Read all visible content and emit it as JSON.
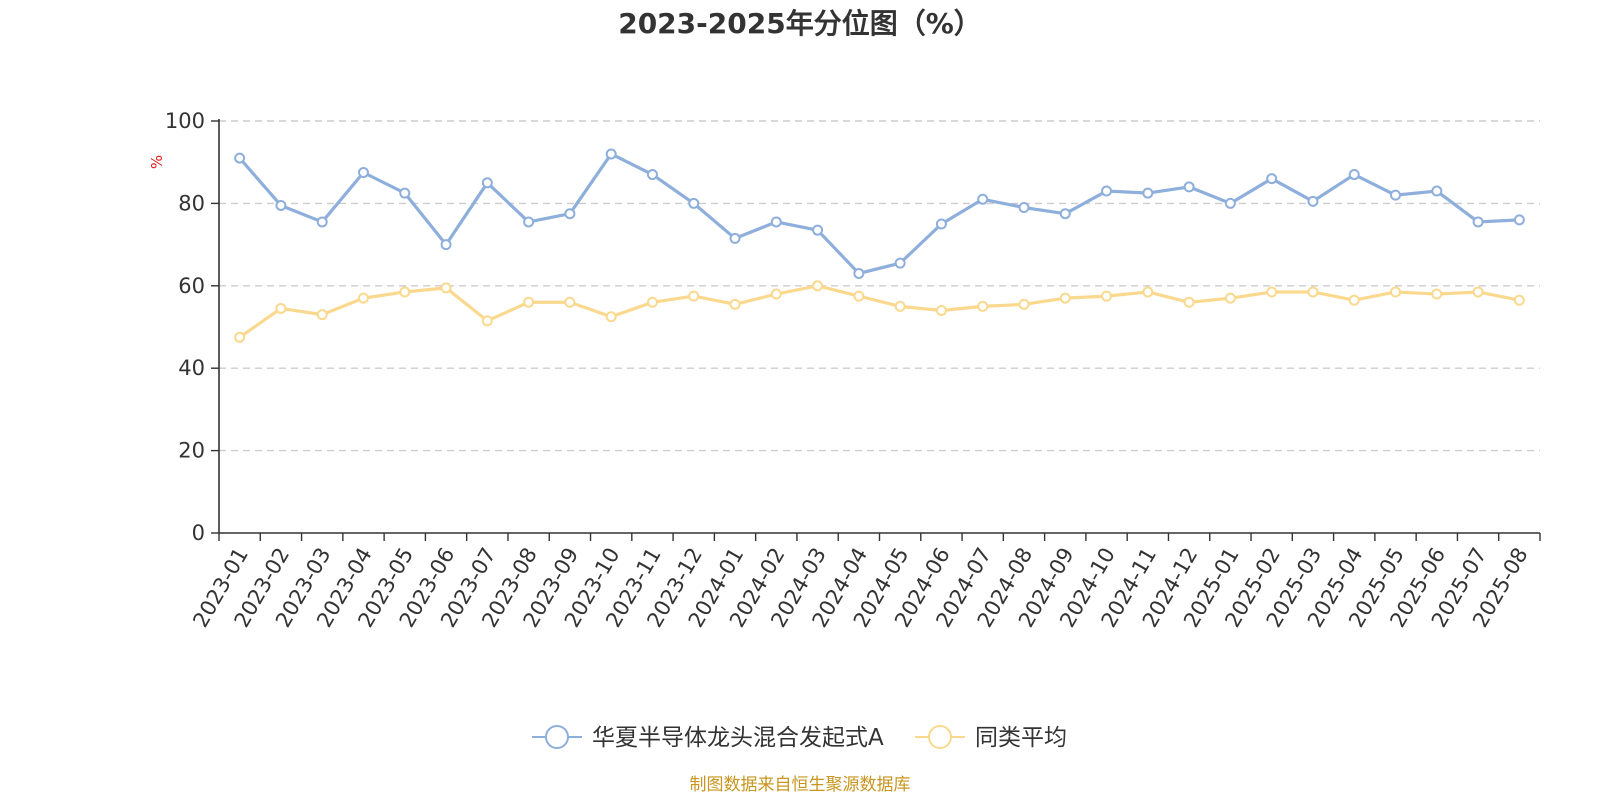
{
  "chart_data": {
    "type": "line",
    "title": "2023-2025年分位图（%）",
    "ylabel": "%",
    "ylim": [
      0,
      100
    ],
    "yticks": [
      0,
      20,
      40,
      60,
      80,
      100
    ],
    "ytick_labels": [
      "0",
      "20",
      "40",
      "60",
      "80",
      "100"
    ],
    "grid": true,
    "legend_position": "bottom-center",
    "categories": [
      "2023-01",
      "2023-02",
      "2023-03",
      "2023-04",
      "2023-05",
      "2023-06",
      "2023-07",
      "2023-08",
      "2023-09",
      "2023-10",
      "2023-11",
      "2023-12",
      "2024-01",
      "2024-02",
      "2024-03",
      "2024-04",
      "2024-05",
      "2024-06",
      "2024-07",
      "2024-08",
      "2024-09",
      "2024-10",
      "2024-11",
      "2024-12",
      "2025-01",
      "2025-02",
      "2025-03",
      "2025-04",
      "2025-05",
      "2025-06",
      "2025-07",
      "2025-08"
    ],
    "series": [
      {
        "name": "华夏半导体龙头混合发起式A",
        "color": "#8eaedc",
        "values": [
          91,
          79.5,
          75.5,
          87.5,
          82.5,
          70,
          85,
          75.5,
          77.5,
          92,
          87,
          80,
          71.5,
          75.5,
          73.5,
          63,
          65.5,
          75,
          81,
          79,
          77.5,
          83,
          82.5,
          84,
          80,
          86,
          80.5,
          87,
          82,
          83,
          75.5,
          76
        ]
      },
      {
        "name": "同类平均",
        "color": "#fad98f",
        "values": [
          47.5,
          54.5,
          53,
          57,
          58.5,
          59.5,
          51.5,
          56,
          56,
          52.5,
          56,
          57.5,
          55.5,
          58,
          60,
          57.5,
          55,
          54,
          55,
          55.5,
          57,
          57.5,
          58.5,
          56,
          57,
          58.5,
          58.5,
          56.5,
          58.5,
          58,
          58.5,
          56.5
        ]
      }
    ]
  },
  "footer": {
    "source": "制图数据来自恒生聚源数据库"
  },
  "colors": {
    "axis": "#333333",
    "grid": "#cccccc",
    "unit": "#e02020",
    "source": "#c8961e"
  }
}
